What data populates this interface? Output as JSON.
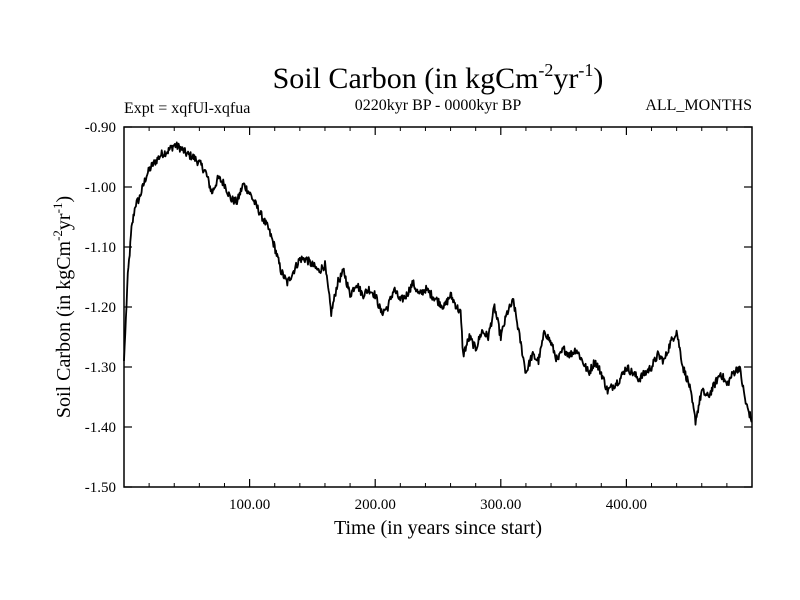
{
  "chart_data": {
    "type": "line",
    "title_main": "Soil Carbon (in kgCm",
    "title_sup1": "-2",
    "title_mid": "yr",
    "title_sup2": "-1",
    "title_end": ")",
    "expt_label": "Expt = xqfUl-xqfua",
    "period_label": "0220kyr BP - 0000kyr BP",
    "months_label": "ALL_MONTHS",
    "xlabel": "Time (in years since start)",
    "ylabel_main": "Soil Carbon (in kgCm",
    "ylabel_sup1": "-2",
    "ylabel_mid": "yr",
    "ylabel_sup2": "-1",
    "ylabel_end": ")",
    "xlim": [
      0,
      500
    ],
    "ylim": [
      -1.5,
      -0.9
    ],
    "xticks": [
      {
        "value": 100,
        "label": "100.00"
      },
      {
        "value": 200,
        "label": "200.00"
      },
      {
        "value": 300,
        "label": "300.00"
      },
      {
        "value": 400,
        "label": "400.00"
      }
    ],
    "yticks": [
      {
        "value": -0.9,
        "label": "-0.90"
      },
      {
        "value": -1.0,
        "label": "-1.00"
      },
      {
        "value": -1.1,
        "label": "-1.10"
      },
      {
        "value": -1.2,
        "label": "-1.20"
      },
      {
        "value": -1.3,
        "label": "-1.30"
      },
      {
        "value": -1.4,
        "label": "-1.40"
      },
      {
        "value": -1.5,
        "label": "-1.50"
      }
    ],
    "series": [
      {
        "name": "Soil Carbon",
        "color": "#000000",
        "x": [
          0,
          3,
          6,
          9,
          12,
          15,
          18,
          22,
          26,
          30,
          35,
          40,
          45,
          50,
          55,
          60,
          65,
          70,
          75,
          80,
          85,
          90,
          95,
          100,
          105,
          110,
          115,
          120,
          125,
          130,
          135,
          140,
          145,
          150,
          155,
          160,
          165,
          170,
          175,
          180,
          185,
          190,
          195,
          200,
          205,
          210,
          215,
          220,
          225,
          230,
          235,
          240,
          245,
          250,
          255,
          260,
          265,
          268,
          270,
          275,
          280,
          285,
          290,
          295,
          300,
          305,
          310,
          315,
          320,
          325,
          330,
          335,
          340,
          345,
          350,
          355,
          360,
          365,
          370,
          375,
          380,
          385,
          390,
          395,
          400,
          405,
          410,
          415,
          420,
          425,
          430,
          435,
          440,
          445,
          450,
          455,
          460,
          465,
          470,
          475,
          480,
          485,
          490,
          495,
          500
        ],
        "y": [
          -1.29,
          -1.15,
          -1.07,
          -1.03,
          -1.02,
          -1.0,
          -0.98,
          -0.965,
          -0.955,
          -0.945,
          -0.94,
          -0.93,
          -0.935,
          -0.945,
          -0.95,
          -0.96,
          -0.975,
          -1.01,
          -0.985,
          -0.995,
          -1.02,
          -1.025,
          -0.995,
          -1.01,
          -1.03,
          -1.05,
          -1.07,
          -1.1,
          -1.14,
          -1.16,
          -1.14,
          -1.12,
          -1.12,
          -1.13,
          -1.14,
          -1.13,
          -1.21,
          -1.16,
          -1.14,
          -1.18,
          -1.16,
          -1.18,
          -1.17,
          -1.18,
          -1.21,
          -1.2,
          -1.17,
          -1.19,
          -1.18,
          -1.16,
          -1.18,
          -1.17,
          -1.18,
          -1.19,
          -1.2,
          -1.18,
          -1.2,
          -1.21,
          -1.28,
          -1.25,
          -1.27,
          -1.24,
          -1.25,
          -1.2,
          -1.25,
          -1.21,
          -1.19,
          -1.25,
          -1.31,
          -1.28,
          -1.29,
          -1.24,
          -1.26,
          -1.29,
          -1.27,
          -1.28,
          -1.27,
          -1.29,
          -1.31,
          -1.29,
          -1.31,
          -1.34,
          -1.33,
          -1.32,
          -1.3,
          -1.31,
          -1.32,
          -1.31,
          -1.3,
          -1.28,
          -1.29,
          -1.26,
          -1.24,
          -1.3,
          -1.33,
          -1.39,
          -1.34,
          -1.35,
          -1.33,
          -1.31,
          -1.33,
          -1.31,
          -1.3,
          -1.36,
          -1.39
        ]
      }
    ]
  }
}
